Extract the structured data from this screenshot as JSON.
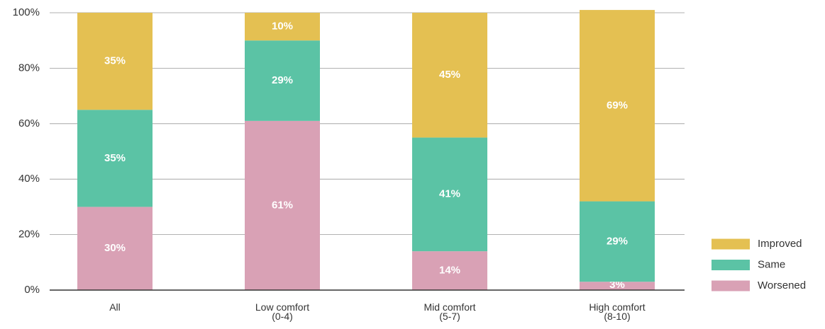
{
  "chart_data": {
    "type": "stacked_bar",
    "categories": [
      "All",
      "Low comfort\n(0-4)",
      "Mid comfort\n(5-7)",
      "High comfort\n(8-10)"
    ],
    "series": [
      {
        "name": "Worsened",
        "color": "#d9a1b5",
        "values": [
          30,
          61,
          14,
          3
        ],
        "value_labels": [
          "30%",
          "61%",
          "14%",
          "3%"
        ]
      },
      {
        "name": "Same",
        "color": "#5bc3a5",
        "values": [
          35,
          29,
          41,
          29
        ],
        "value_labels": [
          "35%",
          "29%",
          "41%",
          "29%"
        ]
      },
      {
        "name": "Improved",
        "color": "#e4c052",
        "values": [
          35,
          10,
          45,
          69
        ],
        "value_labels": [
          "35%",
          "10%",
          "45%",
          "69%"
        ]
      }
    ],
    "ylim": [
      0,
      100
    ],
    "yticks": [
      {
        "value": 0,
        "label": "0%"
      },
      {
        "value": 20,
        "label": "20%"
      },
      {
        "value": 40,
        "label": "40%"
      },
      {
        "value": 60,
        "label": "60%"
      },
      {
        "value": 80,
        "label": "80%"
      },
      {
        "value": 100,
        "label": "100%"
      }
    ],
    "grid": true,
    "legend": "right"
  }
}
